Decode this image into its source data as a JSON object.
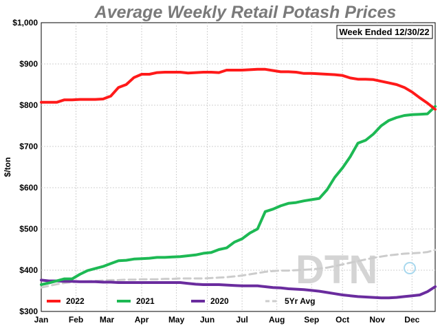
{
  "chart_data": {
    "type": "line",
    "title": "Average Weekly Retail Potash Prices",
    "annotation": "Week Ended 12/30/22",
    "ylabel": "$/ton",
    "xlabel": "",
    "ylim": [
      300,
      1000
    ],
    "y_ticks": [
      300,
      400,
      500,
      600,
      700,
      800,
      900,
      1000
    ],
    "y_tick_labels": [
      "$300",
      "$400",
      "$500",
      "$600",
      "$700",
      "$800",
      "$900",
      "$1,000"
    ],
    "x_range": [
      1,
      52
    ],
    "x_unit": "week of year",
    "x_ticks": [
      1,
      5.5,
      9.5,
      14,
      18.5,
      22.5,
      27,
      31.5,
      36,
      40,
      44.5,
      49
    ],
    "x_tick_labels": [
      "Jan",
      "Feb",
      "Mar",
      "Apr",
      "May",
      "Jun",
      "Jul",
      "Aug",
      "Sep",
      "Oct",
      "Nov",
      "Dec"
    ],
    "grid": true,
    "legend_position": "bottom",
    "logo": "DTN",
    "series": [
      {
        "name": "2022",
        "color": "#ff1a1a",
        "dash": false,
        "x": [
          1,
          2,
          3,
          4,
          5,
          6,
          7,
          8,
          9,
          10,
          11,
          12,
          13,
          14,
          15,
          16,
          17,
          18,
          19,
          20,
          21,
          22,
          23,
          24,
          25,
          26,
          27,
          28,
          29,
          30,
          31,
          32,
          33,
          34,
          35,
          36,
          37,
          38,
          39,
          40,
          41,
          42,
          43,
          44,
          45,
          46,
          47,
          48,
          49,
          50,
          51,
          52
        ],
        "values": [
          807,
          807,
          807,
          813,
          813,
          814,
          814,
          814,
          815,
          822,
          843,
          850,
          867,
          875,
          875,
          879,
          880,
          880,
          880,
          878,
          879,
          880,
          880,
          879,
          885,
          885,
          885,
          886,
          887,
          887,
          884,
          881,
          881,
          880,
          877,
          877,
          876,
          875,
          874,
          872,
          866,
          863,
          863,
          862,
          858,
          854,
          850,
          843,
          832,
          818,
          805,
          790
        ]
      },
      {
        "name": "2021",
        "color": "#1db954",
        "dash": false,
        "x": [
          1,
          2,
          3,
          4,
          5,
          6,
          7,
          8,
          9,
          10,
          11,
          12,
          13,
          14,
          15,
          16,
          17,
          18,
          19,
          20,
          21,
          22,
          23,
          24,
          25,
          26,
          27,
          28,
          29,
          30,
          31,
          32,
          33,
          34,
          35,
          36,
          37,
          38,
          39,
          40,
          41,
          42,
          43,
          44,
          45,
          46,
          47,
          48,
          49,
          50,
          51,
          52
        ],
        "values": [
          365,
          369,
          374,
          379,
          379,
          390,
          399,
          404,
          409,
          416,
          423,
          424,
          427,
          428,
          429,
          431,
          431,
          432,
          433,
          435,
          437,
          441,
          443,
          450,
          454,
          468,
          476,
          490,
          500,
          542,
          548,
          556,
          562,
          564,
          568,
          571,
          574,
          595,
          625,
          648,
          675,
          708,
          715,
          730,
          750,
          763,
          770,
          775,
          777,
          778,
          779,
          797
        ]
      },
      {
        "name": "2020",
        "color": "#6a2c9e",
        "dash": false,
        "x": [
          1,
          2,
          3,
          4,
          5,
          6,
          7,
          8,
          9,
          10,
          11,
          12,
          13,
          14,
          15,
          16,
          17,
          18,
          19,
          20,
          21,
          22,
          23,
          24,
          25,
          26,
          27,
          28,
          29,
          30,
          31,
          32,
          33,
          34,
          35,
          36,
          37,
          38,
          39,
          40,
          41,
          42,
          43,
          44,
          45,
          46,
          47,
          48,
          49,
          50,
          51,
          52
        ],
        "values": [
          376,
          374,
          374,
          373,
          373,
          372,
          372,
          372,
          371,
          371,
          370,
          370,
          370,
          370,
          370,
          370,
          370,
          370,
          370,
          368,
          366,
          365,
          365,
          365,
          364,
          363,
          362,
          362,
          362,
          360,
          358,
          357,
          355,
          354,
          353,
          351,
          349,
          346,
          343,
          340,
          338,
          336,
          335,
          334,
          333,
          333,
          334,
          336,
          338,
          340,
          348,
          360
        ]
      },
      {
        "name": "5Yr Avg",
        "color": "#cccccc",
        "dash": true,
        "x": [
          1,
          2,
          3,
          4,
          5,
          6,
          7,
          8,
          9,
          10,
          11,
          12,
          13,
          14,
          15,
          16,
          17,
          18,
          19,
          20,
          21,
          22,
          23,
          24,
          25,
          26,
          27,
          28,
          29,
          30,
          31,
          32,
          33,
          34,
          35,
          36,
          37,
          38,
          39,
          40,
          41,
          42,
          43,
          44,
          45,
          46,
          47,
          48,
          49,
          50,
          51,
          52
        ],
        "values": [
          358,
          362,
          366,
          369,
          371,
          372,
          373,
          374,
          375,
          376,
          376,
          377,
          377,
          378,
          378,
          378,
          379,
          379,
          380,
          380,
          380,
          380,
          381,
          382,
          383,
          385,
          387,
          390,
          393,
          396,
          398,
          399,
          399,
          400,
          401,
          402,
          404,
          406,
          410,
          414,
          418,
          422,
          426,
          430,
          433,
          436,
          438,
          440,
          441,
          442,
          444,
          449
        ]
      }
    ]
  }
}
